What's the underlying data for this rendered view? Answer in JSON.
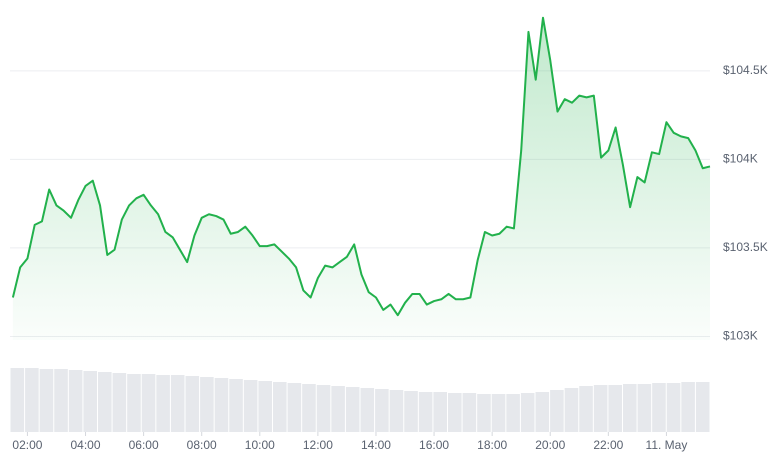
{
  "chart_data": {
    "type": "line",
    "x": [
      1.5,
      1.75,
      2,
      2.25,
      2.5,
      2.75,
      3,
      3.25,
      3.5,
      3.75,
      4,
      4.25,
      4.5,
      4.75,
      5,
      5.25,
      5.5,
      5.75,
      6,
      6.25,
      6.5,
      6.75,
      7,
      7.25,
      7.5,
      7.75,
      8,
      8.25,
      8.5,
      8.75,
      9,
      9.25,
      9.5,
      9.75,
      10,
      10.25,
      10.5,
      10.75,
      11,
      11.25,
      11.5,
      11.75,
      12,
      12.25,
      12.5,
      12.75,
      13,
      13.25,
      13.5,
      13.75,
      14,
      14.25,
      14.5,
      14.75,
      15,
      15.25,
      15.5,
      15.75,
      16,
      16.25,
      16.5,
      16.75,
      17,
      17.25,
      17.5,
      17.75,
      18,
      18.25,
      18.5,
      18.75,
      19,
      19.25,
      19.5,
      19.75,
      20,
      20.25,
      20.5,
      20.75,
      21,
      21.25,
      21.5,
      21.75,
      22,
      22.25,
      22.5,
      22.75,
      23,
      23.25,
      23.5,
      23.75,
      24,
      24.25,
      24.5,
      24.75,
      25,
      25.25,
      25.5
    ],
    "series": [
      {
        "color": "#22b14c",
        "values": [
          103220,
          103390,
          103440,
          103630,
          103650,
          103830,
          103740,
          103710,
          103670,
          103770,
          103850,
          103880,
          103740,
          103460,
          103490,
          103660,
          103740,
          103780,
          103800,
          103740,
          103690,
          103590,
          103560,
          103490,
          103420,
          103570,
          103670,
          103690,
          103680,
          103660,
          103580,
          103590,
          103620,
          103570,
          103510,
          103510,
          103520,
          103480,
          103440,
          103390,
          103260,
          103220,
          103330,
          103400,
          103390,
          103420,
          103450,
          103520,
          103350,
          103250,
          103220,
          103150,
          103180,
          103120,
          103190,
          103240,
          103240,
          103180,
          103200,
          103210,
          103240,
          103210,
          103210,
          103220,
          103430,
          103590,
          103570,
          103580,
          103620,
          103610,
          104050,
          104720,
          104450,
          104800,
          104560,
          104270,
          104340,
          104320,
          104360,
          104350,
          104360,
          104010,
          104050,
          104180,
          103970,
          103730,
          103900,
          103870,
          104040,
          104030,
          104210,
          104150,
          104130,
          104120,
          104050,
          103950,
          103960
        ]
      }
    ],
    "xlim": [
      1.4,
      25.5
    ],
    "xticks": [
      {
        "value": 2,
        "label": "02:00"
      },
      {
        "value": 4,
        "label": "04:00"
      },
      {
        "value": 6,
        "label": "06:00"
      },
      {
        "value": 8,
        "label": "08:00"
      },
      {
        "value": 10,
        "label": "10:00"
      },
      {
        "value": 12,
        "label": "12:00"
      },
      {
        "value": 14,
        "label": "14:00"
      },
      {
        "value": 16,
        "label": "16:00"
      },
      {
        "value": 18,
        "label": "18:00"
      },
      {
        "value": 20,
        "label": "20:00"
      },
      {
        "value": 22,
        "label": "22:00"
      },
      {
        "value": 24,
        "label": "11. May"
      }
    ],
    "ylim": [
      102980,
      104900
    ],
    "yticks": [
      {
        "value": 103000,
        "label": "$103K"
      },
      {
        "value": 103500,
        "label": "$103.5K"
      },
      {
        "value": 104000,
        "label": "$104K"
      },
      {
        "value": 104500,
        "label": "$104.5K"
      }
    ],
    "grid": true,
    "volume": {
      "color": "#e6e8ec",
      "ylim": [
        0,
        64
      ],
      "values": [
        64,
        64,
        63,
        63,
        62,
        61,
        60,
        59,
        58,
        58,
        57,
        57,
        56,
        55,
        54,
        53,
        52,
        51,
        50,
        49,
        48,
        47,
        46,
        45,
        44,
        43,
        42,
        41,
        40,
        40,
        39,
        39,
        38,
        38,
        38,
        39,
        40,
        42,
        44,
        46,
        47,
        47,
        48,
        48,
        49,
        49,
        50,
        50
      ]
    }
  }
}
